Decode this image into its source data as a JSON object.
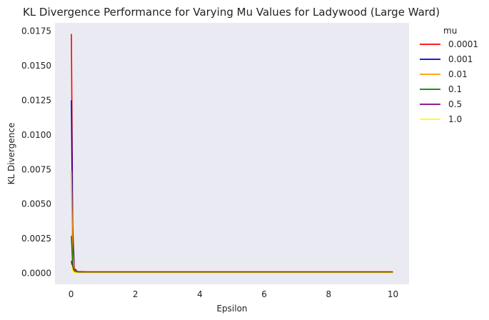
{
  "chart_data": {
    "type": "line",
    "title": "KL Divergence Performance for Varying Mu Values for Ladywood (Large Ward)",
    "xlabel": "Epsilon",
    "ylabel": "KL Divergence",
    "xlim": [
      -0.5,
      10.5
    ],
    "ylim": [
      -0.0008,
      0.0181
    ],
    "xticks": [
      0,
      2,
      4,
      6,
      8,
      10
    ],
    "yticks": [
      0.0,
      0.0025,
      0.005,
      0.0075,
      0.01,
      0.0125,
      0.015,
      0.0175
    ],
    "ytick_labels": [
      "0.0000",
      "0.0025",
      "0.0050",
      "0.0075",
      "0.0100",
      "0.0125",
      "0.0150",
      "0.0175"
    ],
    "grid": false,
    "plot_background": "#eaeaf2",
    "legend": {
      "title": "mu",
      "placement": "outside-right"
    },
    "series": [
      {
        "name": "0.0001",
        "color": "#ff0000",
        "x": [
          0.01,
          0.05,
          0.1,
          0.2,
          0.5,
          1,
          2,
          5,
          10
        ],
        "y": [
          0.0173,
          0.0035,
          0.00035,
          0.00012,
          0.0001,
          0.0001,
          0.0001,
          0.0001,
          0.0001
        ]
      },
      {
        "name": "0.001",
        "color": "#0000cc",
        "x": [
          0.01,
          0.05,
          0.1,
          0.2,
          0.5,
          1,
          2,
          5,
          10
        ],
        "y": [
          0.0125,
          0.0025,
          0.0003,
          0.0001,
          8e-05,
          8e-05,
          8e-05,
          8e-05,
          8e-05
        ]
      },
      {
        "name": "0.01",
        "color": "#ff9900",
        "x": [
          0.01,
          0.05,
          0.1,
          0.2,
          0.5,
          1,
          2,
          5,
          10
        ],
        "y": [
          0.0074,
          0.0015,
          0.0002,
          8e-05,
          6e-05,
          6e-05,
          6e-05,
          6e-05,
          6e-05
        ]
      },
      {
        "name": "0.1",
        "color": "#008000",
        "x": [
          0.01,
          0.05,
          0.1,
          0.2,
          0.5,
          1,
          2,
          5,
          10
        ],
        "y": [
          0.0027,
          0.0006,
          0.00012,
          6e-05,
          5e-05,
          5e-05,
          5e-05,
          5e-05,
          5e-05
        ]
      },
      {
        "name": "0.5",
        "color": "#800080",
        "x": [
          0.01,
          0.05,
          0.1,
          0.2,
          0.5,
          1,
          2,
          5,
          10
        ],
        "y": [
          0.0009,
          0.0003,
          8e-05,
          4e-05,
          3e-05,
          3e-05,
          3e-05,
          3e-05,
          3e-05
        ]
      },
      {
        "name": "1.0",
        "color": "#ffff00",
        "x": [
          0.01,
          0.05,
          0.1,
          0.2,
          0.5,
          1,
          2,
          5,
          10
        ],
        "y": [
          0.0006,
          0.0002,
          5e-05,
          2e-05,
          1e-05,
          1e-05,
          1e-05,
          1e-05,
          1e-05
        ]
      }
    ]
  }
}
